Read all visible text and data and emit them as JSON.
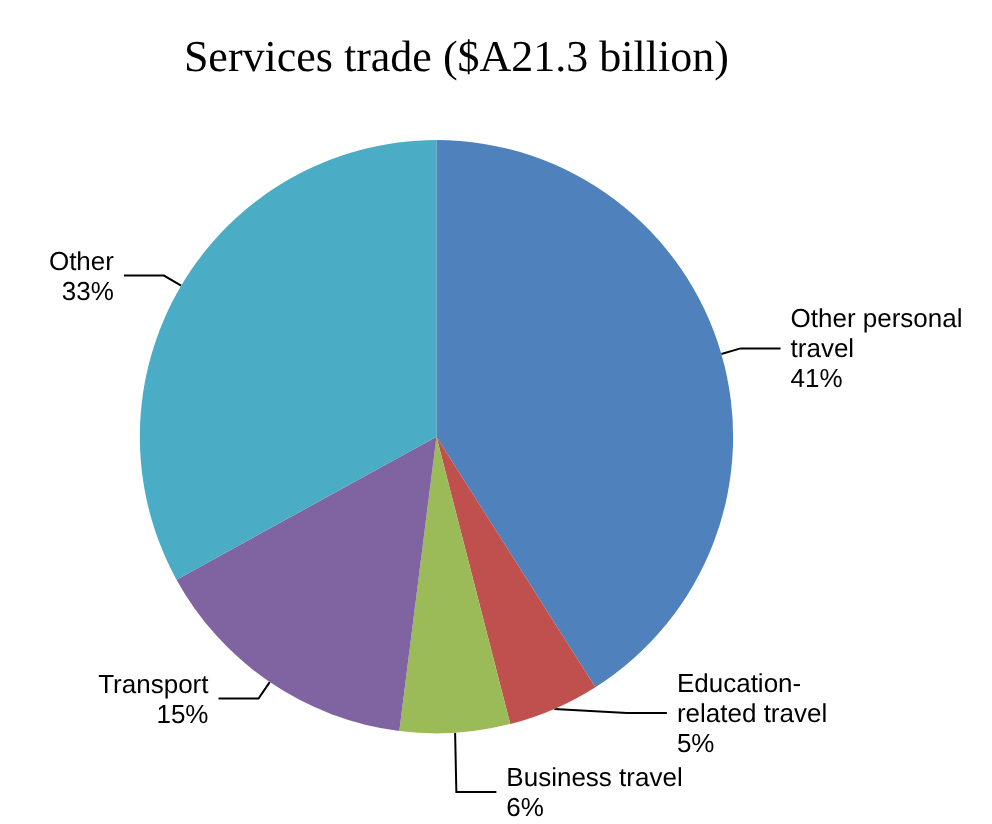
{
  "chart_data": {
    "type": "pie",
    "title": "Services trade ($A21.3 billion)",
    "categories": [
      "Other personal travel",
      "Education-related travel",
      "Business travel",
      "Transport",
      "Other"
    ],
    "values": [
      41,
      5,
      6,
      15,
      33
    ],
    "value_labels": [
      "41%",
      "5%",
      "6%",
      "15%",
      "33%"
    ],
    "colors": [
      "#4f81bd",
      "#c0504d",
      "#9bbb59",
      "#8064a2",
      "#4bacc6"
    ],
    "legend": false
  }
}
